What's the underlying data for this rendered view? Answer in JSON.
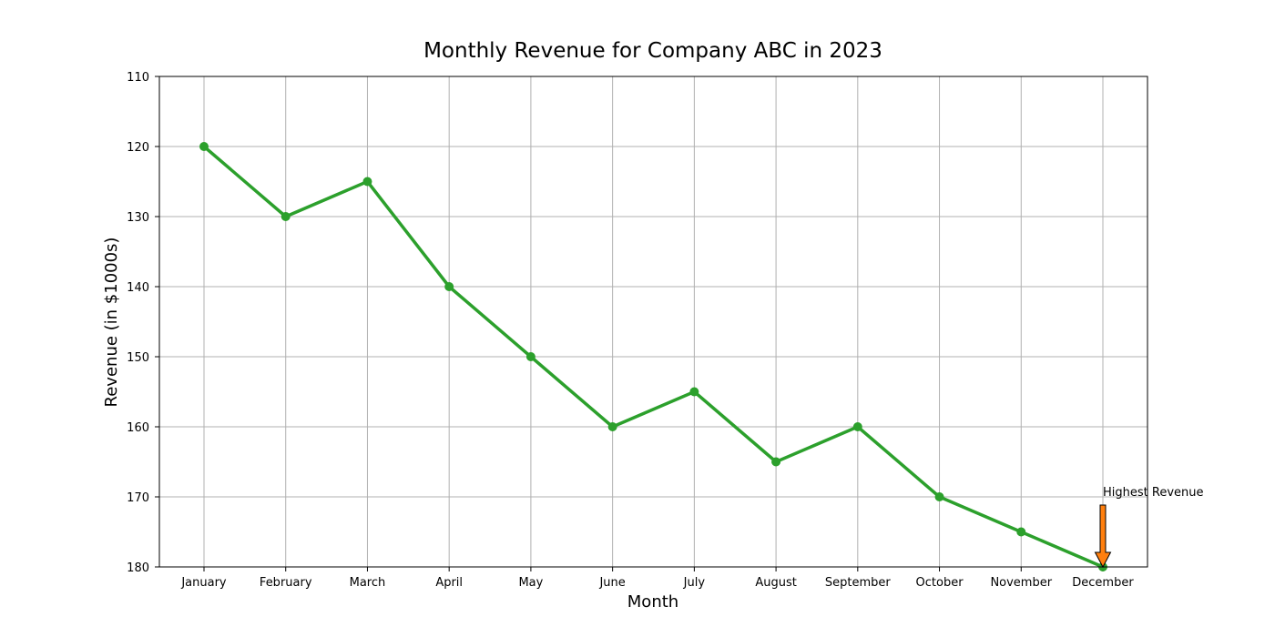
{
  "chart_data": {
    "type": "line",
    "title": "Monthly Revenue for Company ABC in 2023",
    "xlabel": "Month",
    "ylabel": "Revenue (in $1000s)",
    "categories": [
      "January",
      "February",
      "March",
      "April",
      "May",
      "June",
      "July",
      "August",
      "September",
      "October",
      "November",
      "December"
    ],
    "series": [
      {
        "values": [
          120,
          130,
          125,
          140,
          150,
          160,
          155,
          165,
          160,
          170,
          175,
          180
        ],
        "color": "#2ca02c",
        "marker": "circle"
      }
    ],
    "ylim": [
      110,
      180
    ],
    "y_inverted": true,
    "yticks": [
      110,
      120,
      130,
      140,
      150,
      160,
      170,
      180
    ],
    "grid": true,
    "annotations": [
      {
        "text": "Highest Revenue",
        "category": "December",
        "value": 180,
        "arrow_color": "#ff7f0e"
      }
    ]
  }
}
